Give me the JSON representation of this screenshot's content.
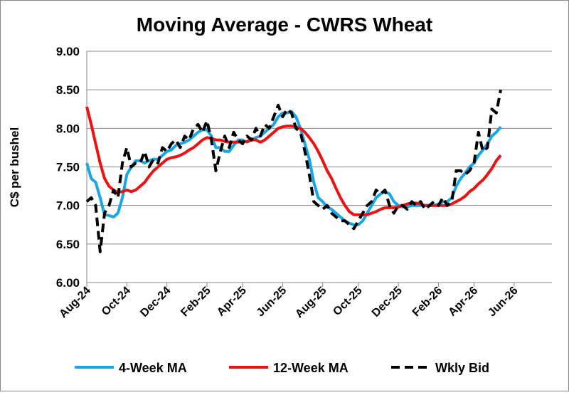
{
  "chart_data": {
    "type": "line",
    "title": "Moving Average - CWRS Wheat",
    "y_label": "C$ per bushel",
    "categories": [
      "Aug-24",
      null,
      null,
      null,
      null,
      null,
      null,
      null,
      null,
      "Oct-24",
      null,
      null,
      null,
      null,
      null,
      null,
      null,
      null,
      "Dec-24",
      null,
      null,
      null,
      null,
      null,
      null,
      null,
      null,
      "Feb-25",
      null,
      null,
      null,
      null,
      null,
      null,
      null,
      "Apr-25",
      null,
      null,
      null,
      null,
      null,
      null,
      null,
      null,
      "Jun-25",
      null,
      null,
      null,
      null,
      null,
      null,
      null,
      null,
      "Aug-25",
      null,
      null,
      null,
      null,
      null,
      null,
      null,
      "Oct-25",
      null,
      null,
      null,
      null,
      null,
      null,
      null,
      null,
      "Dec-25",
      null,
      null,
      null,
      null,
      null,
      null,
      null,
      null,
      "Feb-26",
      null,
      null,
      null,
      null,
      null,
      null,
      null,
      "Apr-26",
      null,
      null,
      null,
      null,
      null,
      null,
      null,
      null,
      "Jun-26",
      null,
      null,
      null,
      null,
      null,
      null,
      null,
      null
    ],
    "series": [
      {
        "name": "4-Week MA",
        "color": "#17a7e8",
        "dashed": false,
        "values": [
          7.55,
          7.35,
          7.3,
          7.1,
          6.88,
          6.87,
          6.85,
          6.9,
          7.1,
          7.4,
          7.5,
          7.58,
          7.58,
          7.55,
          7.58,
          7.6,
          7.6,
          7.65,
          7.7,
          7.72,
          7.78,
          7.8,
          7.82,
          7.85,
          7.9,
          7.95,
          7.98,
          7.98,
          7.9,
          7.75,
          7.75,
          7.7,
          7.7,
          7.78,
          7.85,
          7.85,
          7.82,
          7.85,
          7.88,
          7.9,
          7.95,
          8.0,
          8.05,
          8.15,
          8.2,
          8.2,
          8.22,
          8.15,
          8.0,
          7.8,
          7.6,
          7.3,
          7.1,
          7.05,
          6.98,
          6.95,
          6.9,
          6.85,
          6.8,
          6.77,
          6.75,
          6.75,
          6.8,
          6.9,
          7.0,
          7.1,
          7.15,
          7.18,
          7.15,
          7.05,
          7.0,
          6.98,
          6.98,
          7.0,
          7.0,
          7.0,
          7.0,
          7.0,
          7.0,
          7.02,
          7.05,
          7.05,
          7.1,
          7.25,
          7.35,
          7.42,
          7.5,
          7.55,
          7.65,
          7.72,
          7.8,
          7.9,
          7.95,
          8.02,
          null,
          null,
          null,
          null,
          null,
          null,
          null,
          null,
          null,
          null,
          null
        ]
      },
      {
        "name": "12-Week MA",
        "color": "#ee1111",
        "dashed": false,
        "values": [
          8.28,
          8.05,
          7.8,
          7.55,
          7.35,
          7.25,
          7.2,
          7.17,
          7.18,
          7.2,
          7.18,
          7.2,
          7.25,
          7.3,
          7.38,
          7.45,
          7.5,
          7.55,
          7.6,
          7.62,
          7.63,
          7.65,
          7.68,
          7.72,
          7.75,
          7.8,
          7.85,
          7.88,
          7.87,
          7.85,
          7.85,
          7.83,
          7.82,
          7.82,
          7.82,
          7.83,
          7.83,
          7.85,
          7.85,
          7.82,
          7.85,
          7.9,
          7.95,
          8.0,
          8.02,
          8.03,
          8.03,
          8.02,
          8.0,
          7.95,
          7.88,
          7.8,
          7.7,
          7.58,
          7.45,
          7.35,
          7.22,
          7.1,
          7.0,
          6.92,
          6.88,
          6.88,
          6.88,
          6.88,
          6.9,
          6.92,
          6.95,
          6.97,
          6.97,
          6.97,
          6.98,
          7.0,
          7.02,
          7.03,
          7.03,
          7.02,
          7.0,
          7.0,
          7.0,
          7.0,
          7.0,
          7.0,
          7.02,
          7.05,
          7.08,
          7.12,
          7.18,
          7.22,
          7.28,
          7.33,
          7.4,
          7.48,
          7.58,
          7.65,
          null,
          null,
          null,
          null,
          null,
          null,
          null,
          null,
          null,
          null,
          null
        ]
      },
      {
        "name": "Wkly Bid",
        "color": "#000000",
        "dashed": true,
        "values": [
          7.05,
          7.1,
          7.0,
          6.4,
          6.9,
          7.0,
          7.2,
          7.1,
          7.55,
          7.75,
          7.5,
          7.55,
          7.55,
          7.7,
          7.5,
          7.6,
          7.55,
          7.75,
          7.7,
          7.8,
          7.85,
          7.75,
          7.9,
          7.85,
          8.0,
          8.05,
          7.95,
          8.1,
          7.85,
          7.45,
          7.7,
          7.9,
          7.75,
          7.95,
          7.85,
          7.8,
          7.9,
          7.85,
          8.0,
          7.9,
          8.05,
          8.0,
          8.15,
          8.3,
          8.15,
          8.25,
          8.2,
          8.0,
          7.95,
          7.7,
          7.4,
          7.05,
          7.0,
          6.95,
          7.0,
          6.9,
          6.85,
          6.8,
          6.8,
          6.75,
          6.7,
          6.8,
          6.9,
          7.0,
          7.05,
          7.2,
          7.15,
          7.2,
          7.0,
          6.9,
          7.0,
          7.0,
          6.95,
          7.05,
          7.0,
          7.05,
          6.95,
          7.0,
          7.05,
          7.0,
          7.1,
          7.0,
          7.05,
          7.45,
          7.45,
          7.4,
          7.45,
          7.55,
          7.95,
          7.7,
          7.75,
          8.25,
          8.2,
          8.5,
          null,
          null,
          null,
          null,
          null,
          null,
          null,
          null,
          null,
          null,
          null
        ]
      }
    ],
    "ylim": [
      6,
      9
    ],
    "yticks": [
      {
        "value": 6,
        "label": "6.00"
      },
      {
        "value": 6.5,
        "label": "6.50"
      },
      {
        "value": 7,
        "label": "7.00"
      },
      {
        "value": 7.5,
        "label": "7.50"
      },
      {
        "value": 8,
        "label": "8.00"
      },
      {
        "value": 8.5,
        "label": "8.50"
      },
      {
        "value": 9,
        "label": "9.00"
      }
    ],
    "grid": true,
    "legend": "bottom"
  }
}
